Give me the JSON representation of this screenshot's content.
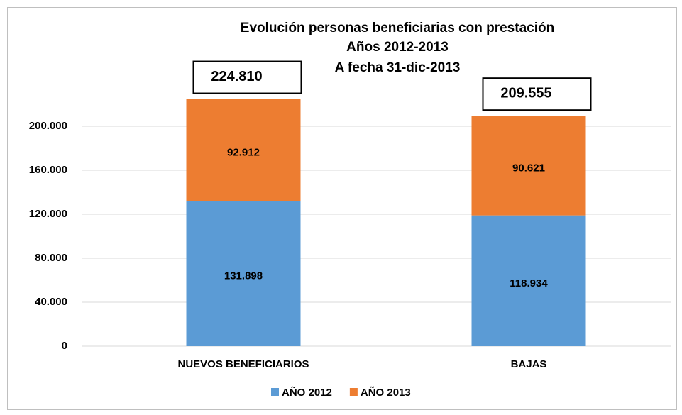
{
  "chart_data": {
    "type": "stacked_bar",
    "title": "Evolución personas beneficiarias con prestación",
    "subtitle": [
      "Años 2012-2013",
      "A fecha 31-dic-2013"
    ],
    "categories": [
      "NUEVOS BENEFICIARIOS",
      "BAJAS"
    ],
    "series": [
      {
        "name": "AÑO 2012",
        "color": "#5b9bd5",
        "values": [
          131898,
          118934
        ],
        "value_labels": [
          "131.898",
          "118.934"
        ]
      },
      {
        "name": "AÑO 2013",
        "color": "#ed7d31",
        "values": [
          92912,
          90621
        ],
        "value_labels": [
          "92.912",
          "90.621"
        ]
      }
    ],
    "totals": {
      "values": [
        224810,
        209555
      ],
      "value_labels": [
        "224.810",
        "209.555"
      ]
    },
    "ylim": [
      0,
      240000
    ],
    "yticks": [
      0,
      {
        "value": 40000,
        "label": "40.000"
      },
      {
        "value": 80000,
        "label": "80.000"
      },
      {
        "value": 120000,
        "label": "120.000"
      },
      {
        "value": 160000,
        "label": "160.000"
      },
      {
        "value": 200000,
        "label": "200.000"
      }
    ],
    "grid": true,
    "legend": "bottom"
  }
}
